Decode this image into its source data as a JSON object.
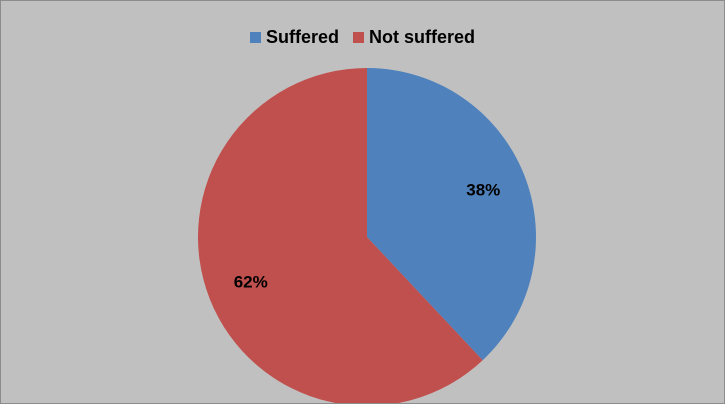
{
  "chart_data": {
    "type": "pie",
    "title": "",
    "categories": [
      "Suffered",
      "Not suffered"
    ],
    "values": [
      38,
      62
    ],
    "unit": "%",
    "data_labels": [
      "38%",
      "62%"
    ],
    "colors": [
      "#4f81bd",
      "#c0504d"
    ],
    "legend_position": "top",
    "start_angle": "12 o'clock, clockwise"
  },
  "colors": {
    "background": "#c0c0c0",
    "border": "#8c8c8c"
  }
}
